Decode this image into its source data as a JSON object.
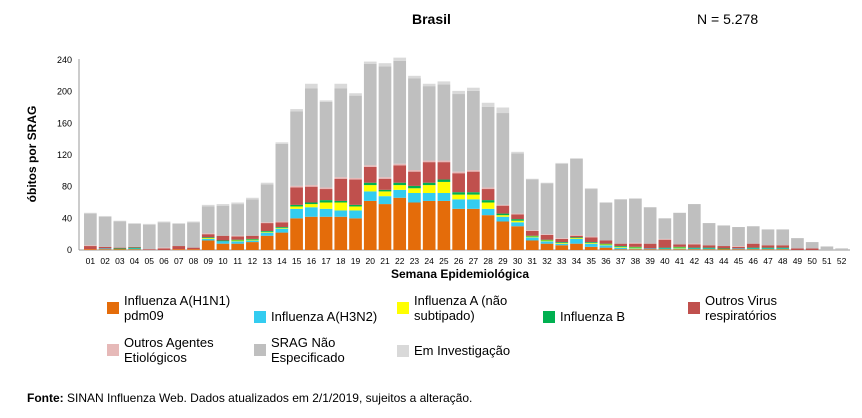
{
  "header": {
    "title": "Brasil",
    "n_label": "N = 5.278"
  },
  "legend": [
    {
      "key": "h1n1",
      "label": "Influenza A(H1N1)\npdm09",
      "color": "#e46c0a"
    },
    {
      "key": "h3n2",
      "label": "Influenza A(H3N2)",
      "color": "#33ccf0"
    },
    {
      "key": "ans",
      "label": "Influenza A (não\nsubtipado)",
      "color": "#ffff00"
    },
    {
      "key": "b",
      "label": "Influenza B",
      "color": "#00b050"
    },
    {
      "key": "ovr",
      "label": "Outros Virus\nrespiratórios",
      "color": "#c0504d"
    },
    {
      "key": "oae",
      "label": "Outros Agentes\nEtiológicos",
      "color": "#e6b9b8"
    },
    {
      "key": "srag",
      "label": "SRAG Não\nEspecificado",
      "color": "#bfbfbf"
    },
    {
      "key": "inv",
      "label": "Em Investigação",
      "color": "#d9d9d9"
    }
  ],
  "footer": {
    "source_label": "Fonte:",
    "source_text": " SINAN Influenza Web. Dados atualizados em 2/1/2019, sujeitos a alteração."
  },
  "chart_data": {
    "type": "bar",
    "stacked": true,
    "title": "Brasil",
    "xlabel": "Semana Epidemiológica",
    "ylabel": "óbitos por SRAG",
    "ylim": [
      0,
      240
    ],
    "yticks": [
      0,
      40,
      80,
      120,
      160,
      200,
      240
    ],
    "grid": false,
    "legend_position": "bottom",
    "categories": [
      "01",
      "02",
      "03",
      "04",
      "05",
      "06",
      "07",
      "08",
      "09",
      "10",
      "11",
      "12",
      "13",
      "14",
      "15",
      "16",
      "17",
      "18",
      "19",
      "20",
      "21",
      "22",
      "23",
      "24",
      "25",
      "26",
      "27",
      "28",
      "29",
      "30",
      "31",
      "32",
      "33",
      "34",
      "35",
      "36",
      "37",
      "38",
      "39",
      "40",
      "41",
      "42",
      "43",
      "44",
      "45",
      "46",
      "47",
      "48",
      "49",
      "50",
      "51",
      "52"
    ],
    "series": [
      {
        "name": "Influenza A(H1N1) pdm09",
        "values": [
          1,
          1,
          1,
          1,
          0,
          0,
          1,
          1,
          12,
          8,
          8,
          10,
          18,
          22,
          40,
          42,
          42,
          42,
          40,
          62,
          58,
          66,
          60,
          62,
          62,
          52,
          52,
          44,
          36,
          30,
          12,
          8,
          6,
          8,
          4,
          3,
          1,
          1,
          1,
          1,
          1,
          1,
          1,
          1,
          1,
          1,
          1,
          1,
          0,
          0,
          0,
          0
        ]
      },
      {
        "name": "Influenza A(H3N2)",
        "values": [
          0,
          1,
          0,
          1,
          0,
          0,
          0,
          0,
          2,
          3,
          3,
          2,
          4,
          5,
          12,
          12,
          10,
          8,
          10,
          12,
          10,
          10,
          12,
          10,
          10,
          12,
          12,
          8,
          6,
          5,
          4,
          3,
          2,
          6,
          4,
          3,
          2,
          1,
          1,
          1,
          1,
          1,
          1,
          0,
          1,
          1,
          1,
          1,
          0,
          0,
          0,
          0
        ]
      },
      {
        "name": "Influenza A (não subtipado)",
        "values": [
          0,
          0,
          0,
          0,
          0,
          0,
          0,
          0,
          1,
          0,
          1,
          1,
          1,
          1,
          3,
          4,
          8,
          10,
          5,
          8,
          6,
          6,
          6,
          10,
          14,
          6,
          6,
          8,
          2,
          2,
          1,
          1,
          1,
          1,
          1,
          1,
          1,
          1,
          0,
          0,
          1,
          0,
          0,
          0,
          0,
          0,
          0,
          0,
          0,
          0,
          0,
          0
        ]
      },
      {
        "name": "Influenza B",
        "values": [
          0,
          0,
          1,
          1,
          0,
          0,
          0,
          0,
          1,
          1,
          1,
          1,
          1,
          1,
          2,
          2,
          3,
          2,
          2,
          3,
          2,
          3,
          3,
          3,
          3,
          3,
          3,
          3,
          2,
          2,
          1,
          1,
          1,
          1,
          1,
          1,
          1,
          1,
          0,
          1,
          1,
          1,
          1,
          1,
          0,
          1,
          1,
          1,
          0,
          0,
          0,
          0
        ]
      },
      {
        "name": "Outros Virus respiratórios",
        "values": [
          4,
          2,
          1,
          1,
          1,
          2,
          4,
          2,
          4,
          6,
          4,
          4,
          10,
          6,
          22,
          20,
          14,
          28,
          32,
          20,
          14,
          22,
          18,
          26,
          22,
          24,
          26,
          14,
          10,
          6,
          6,
          6,
          4,
          2,
          6,
          4,
          3,
          4,
          6,
          10,
          3,
          4,
          3,
          3,
          2,
          5,
          3,
          3,
          2,
          2,
          0,
          0
        ]
      },
      {
        "name": "Outros Agentes Etiológicos",
        "values": [
          1,
          0,
          0,
          0,
          0,
          1,
          0,
          0,
          1,
          0,
          1,
          0,
          1,
          1,
          2,
          2,
          2,
          2,
          2,
          2,
          2,
          2,
          2,
          2,
          2,
          2,
          2,
          2,
          1,
          1,
          1,
          1,
          1,
          1,
          1,
          0,
          0,
          1,
          0,
          1,
          0,
          1,
          0,
          0,
          1,
          0,
          0,
          0,
          0,
          0,
          0,
          0
        ]
      },
      {
        "name": "SRAG Não Especificado",
        "values": [
          40,
          38,
          33,
          29,
          31,
          32,
          28,
          32,
          34,
          38,
          40,
          46,
          48,
          98,
          94,
          122,
          108,
          112,
          104,
          128,
          140,
          130,
          116,
          94,
          96,
          98,
          100,
          102,
          116,
          76,
          64,
          64,
          94,
          96,
          60,
          48,
          56,
          56,
          46,
          26,
          40,
          50,
          28,
          26,
          24,
          22,
          20,
          20,
          13,
          8,
          4,
          2
        ]
      },
      {
        "name": "Em Investigação",
        "values": [
          1,
          1,
          1,
          1,
          1,
          1,
          1,
          1,
          2,
          2,
          2,
          2,
          2,
          2,
          3,
          6,
          2,
          6,
          3,
          3,
          4,
          4,
          3,
          3,
          4,
          4,
          4,
          5,
          7,
          2,
          1,
          1,
          1,
          1,
          1,
          0,
          0,
          0,
          0,
          0,
          0,
          0,
          0,
          0,
          0,
          0,
          0,
          0,
          0,
          0,
          1,
          0
        ]
      }
    ]
  }
}
